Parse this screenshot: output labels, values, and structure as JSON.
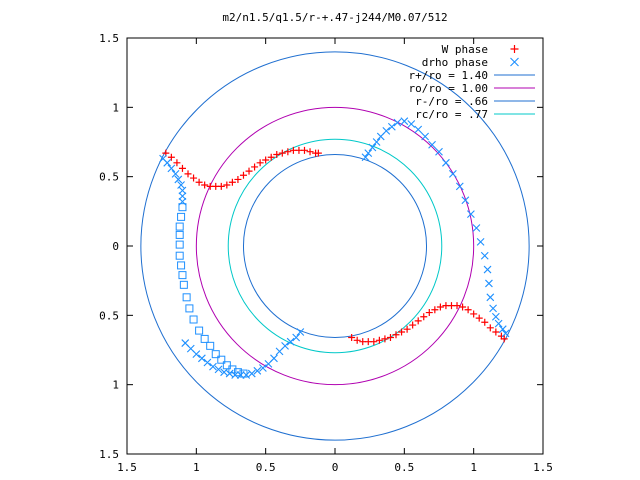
{
  "chart_data": {
    "type": "scatter",
    "title": "m2/n1.5/q1.5/r-+.47-j244/M0.07/512",
    "xlabel": "",
    "ylabel": "",
    "xlim": [
      -1.5,
      1.5
    ],
    "ylim": [
      -1.5,
      1.5
    ],
    "grid": false,
    "legend_position": "top-right",
    "x_ticks": [
      {
        "v": -1.5,
        "label": "1.5"
      },
      {
        "v": -1,
        "label": "1"
      },
      {
        "v": -0.5,
        "label": "0.5"
      },
      {
        "v": 0,
        "label": "0"
      },
      {
        "v": 0.5,
        "label": "0.5"
      },
      {
        "v": 1,
        "label": "1"
      },
      {
        "v": 1.5,
        "label": "1.5"
      }
    ],
    "y_ticks": [
      {
        "v": 1.5,
        "label": "1.5"
      },
      {
        "v": 1,
        "label": "1"
      },
      {
        "v": 0.5,
        "label": "0.5"
      },
      {
        "v": 0,
        "label": "0"
      },
      {
        "v": -0.5,
        "label": "0.5"
      },
      {
        "v": -1,
        "label": "1"
      },
      {
        "v": -1.5,
        "label": "1.5"
      }
    ],
    "circles": [
      {
        "name": "r+/ro = 1.40",
        "radius": 1.4,
        "color": "#1f6fd0"
      },
      {
        "name": "ro/ro = 1.00",
        "radius": 1.0,
        "color": "#b000b0"
      },
      {
        "name": "r-/ro = .66",
        "radius": 0.66,
        "color": "#1f6fd0"
      },
      {
        "name": "rc/ro = .77",
        "radius": 0.77,
        "color": "#00c8c8"
      }
    ],
    "series": [
      {
        "name": "W phase",
        "marker": "plus",
        "color": "#ff0000",
        "points": [
          [
            -1.22,
            0.67
          ],
          [
            -1.18,
            0.64
          ],
          [
            -1.14,
            0.6
          ],
          [
            -1.1,
            0.56
          ],
          [
            -1.06,
            0.52
          ],
          [
            -1.02,
            0.49
          ],
          [
            -0.98,
            0.46
          ],
          [
            -0.94,
            0.44
          ],
          [
            -0.9,
            0.43
          ],
          [
            -0.86,
            0.43
          ],
          [
            -0.82,
            0.43
          ],
          [
            -0.78,
            0.44
          ],
          [
            -0.74,
            0.46
          ],
          [
            -0.7,
            0.48
          ],
          [
            -0.66,
            0.51
          ],
          [
            -0.62,
            0.54
          ],
          [
            -0.58,
            0.57
          ],
          [
            -0.54,
            0.6
          ],
          [
            -0.5,
            0.62
          ],
          [
            -0.46,
            0.64
          ],
          [
            -0.42,
            0.66
          ],
          [
            -0.38,
            0.67
          ],
          [
            -0.34,
            0.68
          ],
          [
            -0.3,
            0.69
          ],
          [
            -0.26,
            0.69
          ],
          [
            -0.22,
            0.69
          ],
          [
            -0.18,
            0.68
          ],
          [
            -0.14,
            0.67
          ],
          [
            -0.12,
            0.67
          ],
          [
            0.12,
            -0.66
          ],
          [
            0.16,
            -0.68
          ],
          [
            0.2,
            -0.69
          ],
          [
            0.24,
            -0.69
          ],
          [
            0.28,
            -0.69
          ],
          [
            0.32,
            -0.68
          ],
          [
            0.36,
            -0.67
          ],
          [
            0.4,
            -0.66
          ],
          [
            0.44,
            -0.64
          ],
          [
            0.48,
            -0.62
          ],
          [
            0.52,
            -0.6
          ],
          [
            0.56,
            -0.57
          ],
          [
            0.6,
            -0.54
          ],
          [
            0.64,
            -0.51
          ],
          [
            0.68,
            -0.48
          ],
          [
            0.72,
            -0.46
          ],
          [
            0.76,
            -0.44
          ],
          [
            0.8,
            -0.43
          ],
          [
            0.84,
            -0.43
          ],
          [
            0.88,
            -0.43
          ],
          [
            0.92,
            -0.44
          ],
          [
            0.96,
            -0.46
          ],
          [
            1.0,
            -0.49
          ],
          [
            1.04,
            -0.52
          ],
          [
            1.08,
            -0.55
          ],
          [
            1.12,
            -0.59
          ],
          [
            1.16,
            -0.62
          ],
          [
            1.2,
            -0.65
          ],
          [
            1.22,
            -0.67
          ]
        ]
      },
      {
        "name": "drho phase",
        "marker": "cross",
        "color": "#1e90ff",
        "points": [
          [
            -1.24,
            0.63
          ],
          [
            -1.21,
            0.6
          ],
          [
            -1.18,
            0.56
          ],
          [
            -1.15,
            0.52
          ],
          [
            -1.13,
            0.48
          ],
          [
            -1.11,
            0.44
          ],
          [
            -1.1,
            0.4
          ],
          [
            -1.1,
            0.36
          ],
          [
            -1.1,
            0.32
          ],
          [
            -1.08,
            -0.7
          ],
          [
            -1.04,
            -0.74
          ],
          [
            -1.0,
            -0.78
          ],
          [
            -0.96,
            -0.81
          ],
          [
            -0.92,
            -0.84
          ],
          [
            -0.88,
            -0.87
          ],
          [
            -0.84,
            -0.89
          ],
          [
            -0.8,
            -0.91
          ],
          [
            -0.76,
            -0.92
          ],
          [
            -0.72,
            -0.93
          ],
          [
            -0.68,
            -0.93
          ],
          [
            -0.64,
            -0.93
          ],
          [
            -0.6,
            -0.92
          ],
          [
            -0.56,
            -0.9
          ],
          [
            -0.52,
            -0.88
          ],
          [
            -0.48,
            -0.85
          ],
          [
            -0.44,
            -0.81
          ],
          [
            -0.4,
            -0.76
          ],
          [
            -0.36,
            -0.72
          ],
          [
            -0.32,
            -0.69
          ],
          [
            -0.28,
            -0.66
          ],
          [
            -0.25,
            -0.62
          ],
          [
            0.22,
            0.64
          ],
          [
            0.24,
            0.67
          ],
          [
            0.27,
            0.71
          ],
          [
            0.3,
            0.75
          ],
          [
            0.33,
            0.79
          ],
          [
            0.37,
            0.83
          ],
          [
            0.41,
            0.86
          ],
          [
            0.45,
            0.89
          ],
          [
            0.5,
            0.9
          ],
          [
            0.55,
            0.88
          ],
          [
            0.6,
            0.84
          ],
          [
            0.65,
            0.79
          ],
          [
            0.7,
            0.73
          ],
          [
            0.75,
            0.68
          ],
          [
            0.8,
            0.6
          ],
          [
            0.85,
            0.52
          ],
          [
            0.9,
            0.43
          ],
          [
            0.94,
            0.33
          ],
          [
            0.98,
            0.23
          ],
          [
            1.02,
            0.13
          ],
          [
            1.05,
            0.03
          ],
          [
            1.08,
            -0.07
          ],
          [
            1.1,
            -0.17
          ],
          [
            1.11,
            -0.27
          ],
          [
            1.12,
            -0.37
          ],
          [
            1.14,
            -0.45
          ],
          [
            1.16,
            -0.51
          ],
          [
            1.18,
            -0.56
          ],
          [
            1.21,
            -0.6
          ],
          [
            1.23,
            -0.63
          ]
        ]
      },
      {
        "name": "",
        "marker": "square",
        "color": "#1e90ff",
        "points": [
          [
            -1.1,
            0.28
          ],
          [
            -1.11,
            0.21
          ],
          [
            -1.12,
            0.14
          ],
          [
            -1.12,
            0.08
          ],
          [
            -1.12,
            0.01
          ],
          [
            -1.12,
            -0.07
          ],
          [
            -1.11,
            -0.14
          ],
          [
            -1.1,
            -0.21
          ],
          [
            -1.09,
            -0.28
          ],
          [
            -1.07,
            -0.37
          ],
          [
            -1.05,
            -0.45
          ],
          [
            -1.02,
            -0.53
          ],
          [
            -0.98,
            -0.61
          ],
          [
            -0.94,
            -0.67
          ],
          [
            -0.9,
            -0.72
          ],
          [
            -0.86,
            -0.78
          ],
          [
            -0.82,
            -0.82
          ],
          [
            -0.78,
            -0.86
          ],
          [
            -0.74,
            -0.89
          ],
          [
            -0.7,
            -0.91
          ],
          [
            -0.66,
            -0.92
          ]
        ]
      }
    ]
  }
}
